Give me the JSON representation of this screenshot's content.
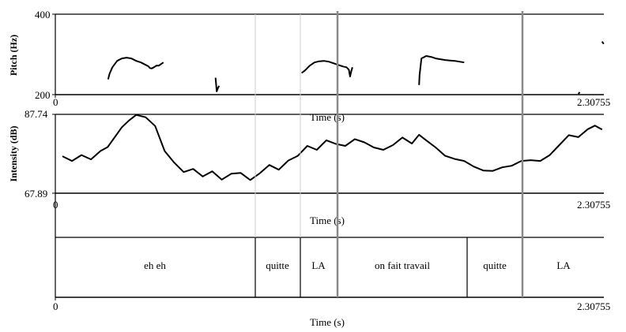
{
  "chart_data": [
    {
      "type": "line",
      "panel": "pitch",
      "ylabel": "Pitch (Hz)",
      "xlabel": "Time (s)",
      "xlim": [
        0,
        2.30755
      ],
      "ylim": [
        200,
        400
      ],
      "xtick_labels": [
        "0",
        "2.30755"
      ],
      "ytick_labels": [
        "400",
        "200"
      ],
      "series": [
        {
          "x": [
            0.222,
            0.228,
            0.24,
            0.26,
            0.28,
            0.3,
            0.32,
            0.34,
            0.36,
            0.38,
            0.392,
            0.398,
            0.405,
            0.415,
            0.425,
            0.435,
            0.445,
            0.455
          ],
          "y": [
            238,
            252,
            268,
            284,
            290,
            292,
            290,
            284,
            280,
            274,
            270,
            266,
            265,
            268,
            272,
            272,
            276,
            280
          ]
        },
        {
          "x": [
            0.674,
            0.679,
            0.684,
            0.689
          ],
          "y": [
            242,
            208,
            216,
            222
          ]
        },
        {
          "x": [
            1.036,
            1.05,
            1.07,
            1.09,
            1.11,
            1.13,
            1.15,
            1.17,
            1.19,
            1.21,
            1.225,
            1.235,
            1.24,
            1.245,
            1.25
          ],
          "y": [
            254,
            260,
            272,
            280,
            283,
            284,
            282,
            278,
            274,
            270,
            268,
            262,
            245,
            258,
            268
          ]
        },
        {
          "x": [
            1.53,
            1.532,
            1.54,
            1.56,
            1.58,
            1.6,
            1.62,
            1.64,
            1.66,
            1.68,
            1.7,
            1.72
          ],
          "y": [
            224,
            248,
            290,
            296,
            294,
            290,
            288,
            286,
            285,
            284,
            282,
            280
          ]
        },
        {
          "x": [
            2.2,
            2.203,
            2.206
          ],
          "y": [
            202,
            204,
            206
          ]
        },
        {
          "x": [
            2.3,
            2.307
          ],
          "y": [
            332,
            326
          ]
        }
      ]
    },
    {
      "type": "line",
      "panel": "intensity",
      "ylabel": "Intensity (dB)",
      "xlabel": "Time (s)",
      "xlim": [
        0,
        2.30755
      ],
      "ylim": [
        67.89,
        87.74
      ],
      "xtick_labels": [
        "0",
        "2.30755"
      ],
      "ytick_labels": [
        "87.74",
        "67.89"
      ],
      "series": [
        {
          "x": [
            0.03,
            0.07,
            0.11,
            0.15,
            0.19,
            0.22,
            0.25,
            0.28,
            0.31,
            0.34,
            0.38,
            0.42,
            0.46,
            0.5,
            0.54,
            0.58,
            0.62,
            0.66,
            0.7,
            0.74,
            0.78,
            0.82,
            0.86,
            0.9,
            0.94,
            0.98,
            1.02,
            1.06,
            1.1,
            1.14,
            1.18,
            1.22,
            1.26,
            1.3,
            1.34,
            1.38,
            1.42,
            1.46,
            1.5,
            1.53,
            1.56,
            1.6,
            1.64,
            1.68,
            1.72,
            1.76,
            1.8,
            1.84,
            1.88,
            1.92,
            1.96,
            2.0,
            2.04,
            2.08,
            2.12,
            2.16,
            2.2,
            2.24,
            2.27,
            2.3
          ],
          "y": [
            77.2,
            76.0,
            77.5,
            76.4,
            78.5,
            79.5,
            82.0,
            84.5,
            86.2,
            87.6,
            87.0,
            84.8,
            78.5,
            75.6,
            73.2,
            74.0,
            72.1,
            73.4,
            71.3,
            72.8,
            73.0,
            71.2,
            72.9,
            75.0,
            73.8,
            76.1,
            77.3,
            79.8,
            78.8,
            81.2,
            80.3,
            79.8,
            81.5,
            80.7,
            79.4,
            78.8,
            80.0,
            81.9,
            80.4,
            82.6,
            81.2,
            79.4,
            77.3,
            76.5,
            76.0,
            74.6,
            73.6,
            73.5,
            74.4,
            74.8,
            76.0,
            76.2,
            76.0,
            77.5,
            80.0,
            82.5,
            82.0,
            84.0,
            84.9,
            83.9
          ]
        }
      ]
    }
  ],
  "textgrid": {
    "xlabel": "Time (s)",
    "xtick_labels": [
      "0",
      "2.30755"
    ],
    "segments": [
      "eh eh",
      "quitte",
      "LA",
      "on fait travail",
      "quitte",
      "LA"
    ]
  }
}
